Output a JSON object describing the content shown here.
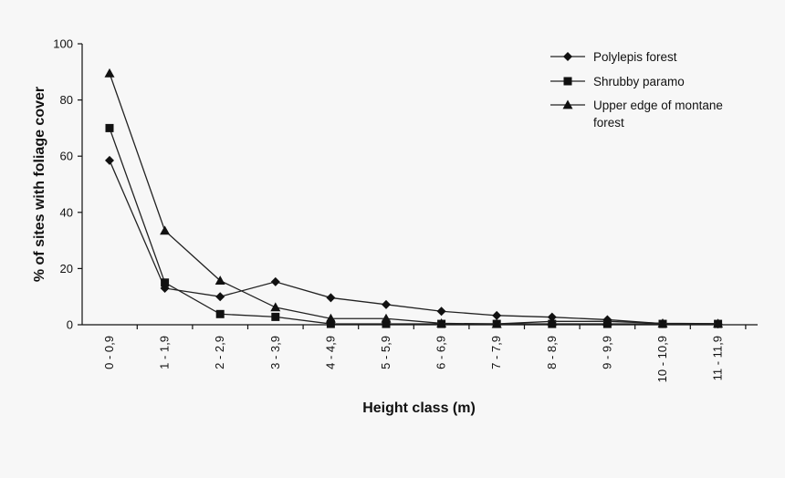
{
  "chart_data": {
    "type": "line",
    "xlabel": "Height class (m)",
    "ylabel": "% of sites with foliage cover",
    "categories": [
      "0 - 0,9",
      "1 - 1,9",
      "2 - 2,9",
      "3 - 3,9",
      "4 - 4,9",
      "5 - 5,9",
      "6 - 6,9",
      "7 - 7,9",
      "8 - 8,9",
      "9 - 9,9",
      "10 - 10,9",
      "11 - 11,9"
    ],
    "ylim": [
      0,
      100
    ],
    "yticks": [
      0,
      20,
      40,
      60,
      80,
      100
    ],
    "grid": false,
    "legend_position": "top-right",
    "series": [
      {
        "name": "Polylepis forest",
        "marker": "diamond",
        "values": [
          58.5,
          13,
          10,
          15.3,
          9.6,
          7.2,
          4.8,
          3.3,
          2.7,
          1.8,
          0.4,
          0.3
        ]
      },
      {
        "name": "Shrubby paramo",
        "marker": "square",
        "values": [
          70,
          15,
          3.8,
          2.8,
          0.3,
          0.3,
          0.3,
          0.3,
          0.3,
          0.3,
          0.3,
          0.3
        ]
      },
      {
        "name": "Upper edge of montane forest",
        "legend_lines": [
          "Upper edge of montane",
          "forest"
        ],
        "marker": "triangle",
        "values": [
          89.5,
          33.5,
          15.7,
          6.2,
          2.2,
          2.2,
          0.5,
          0.3,
          1.2,
          1.2,
          0.5,
          0.4
        ]
      }
    ]
  }
}
